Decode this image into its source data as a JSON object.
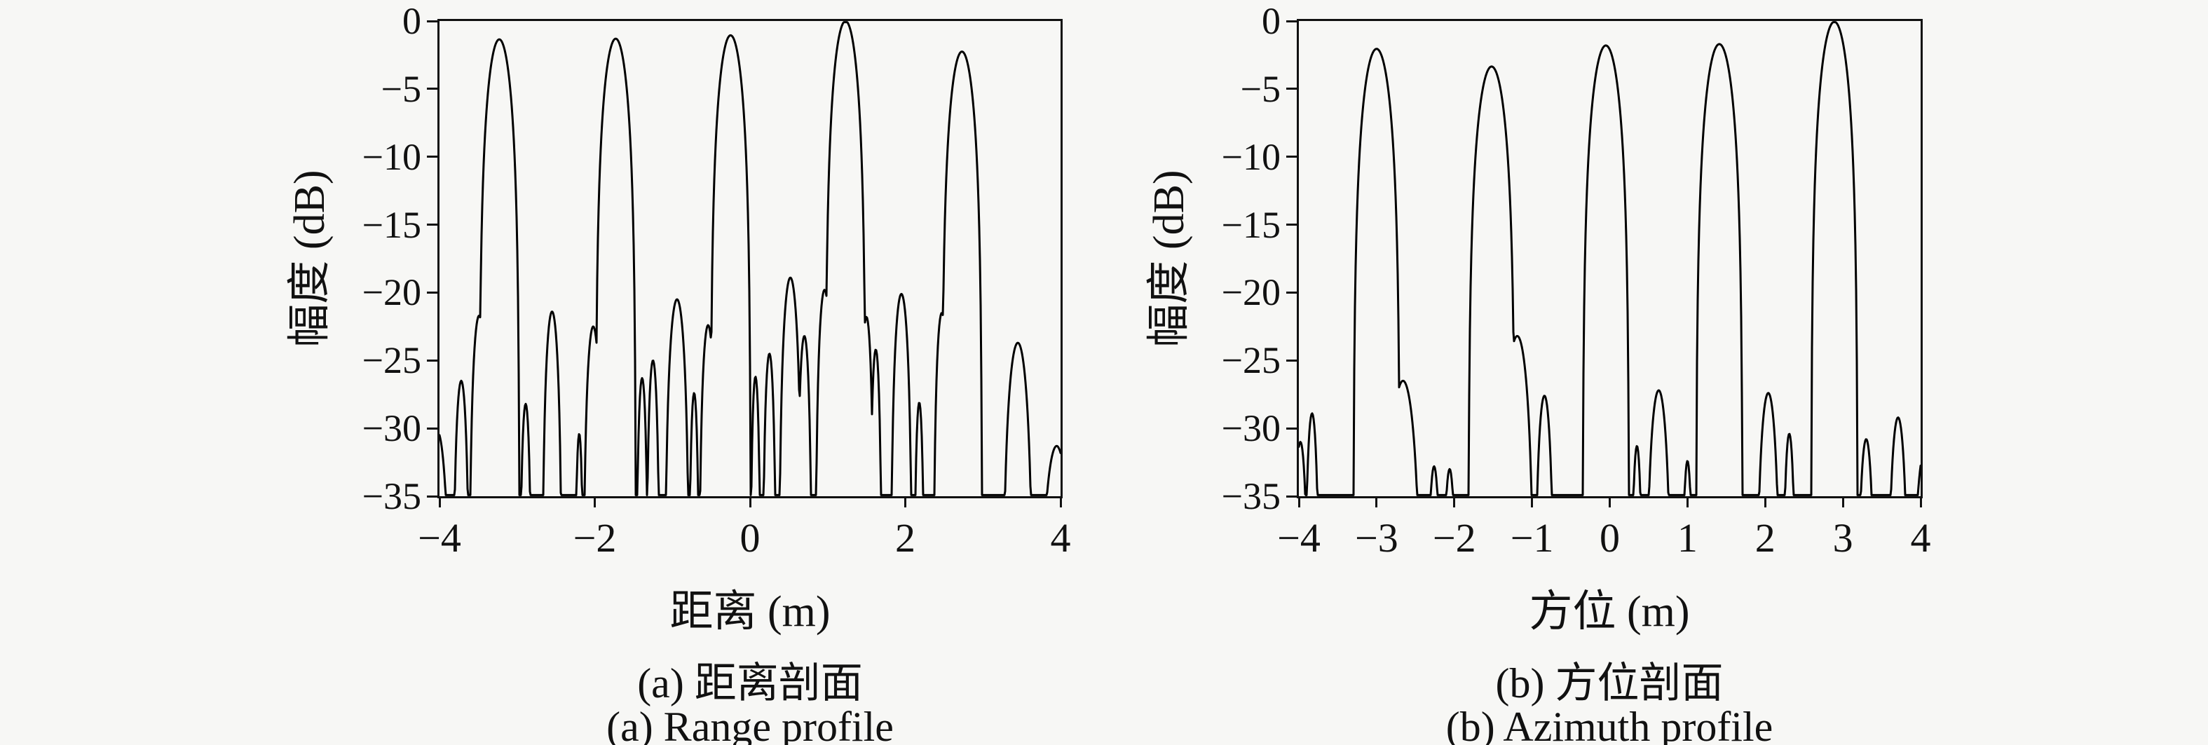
{
  "colors": {
    "background": "#f7f7f5",
    "ink": "#111111",
    "curve": "#000000"
  },
  "figure_ylabel": "幅度 (dB)",
  "chart_data": [
    {
      "type": "line",
      "id": "range-profile",
      "caption_zh": "(a) 距离剖面",
      "caption_en": "(a) Range profile",
      "xlabel": "距离 (m)",
      "ylabel": "幅度 (dB)",
      "xlim": [
        -4,
        4
      ],
      "ylim": [
        -35,
        0
      ],
      "grid": false,
      "legend": "none",
      "x_ticks": [
        {
          "v": -4,
          "label": "−4"
        },
        {
          "v": -2,
          "label": "−2"
        },
        {
          "v": 0,
          "label": "0"
        },
        {
          "v": 2,
          "label": "2"
        },
        {
          "v": 4,
          "label": "4"
        }
      ],
      "y_ticks": [
        {
          "v": 0,
          "label": "0"
        },
        {
          "v": -5,
          "label": "−5"
        },
        {
          "v": -10,
          "label": "−10"
        },
        {
          "v": -15,
          "label": "−15"
        },
        {
          "v": -20,
          "label": "−20"
        },
        {
          "v": -25,
          "label": "−25"
        },
        {
          "v": -30,
          "label": "−30"
        },
        {
          "v": -35,
          "label": "−35"
        }
      ],
      "main_peaks": [
        {
          "x": -3.23,
          "db": -1.35
        },
        {
          "x": -1.73,
          "db": -1.3
        },
        {
          "x": -0.25,
          "db": -1.05
        },
        {
          "x": 1.23,
          "db": 0.0
        },
        {
          "x": 2.73,
          "db": -2.25
        }
      ],
      "lobes": [
        [
          -4.03,
          -30.2,
          0.18
        ],
        [
          -3.72,
          -26.5,
          0.11
        ],
        [
          -3.49,
          -21.7,
          0.13
        ],
        [
          -3.23,
          -1.35,
          0.26
        ],
        [
          -2.89,
          -28.2,
          0.08
        ],
        [
          -2.55,
          -21.4,
          0.13
        ],
        [
          -2.2,
          -30.4,
          0.06
        ],
        [
          -2.02,
          -22.5,
          0.13
        ],
        [
          -1.73,
          -1.3,
          0.26
        ],
        [
          -1.39,
          -26.3,
          0.08
        ],
        [
          -1.25,
          -25.0,
          0.09
        ],
        [
          -0.94,
          -20.5,
          0.16
        ],
        [
          -0.72,
          -27.4,
          0.07
        ],
        [
          -0.54,
          -22.4,
          0.12
        ],
        [
          -0.25,
          -1.05,
          0.26
        ],
        [
          0.07,
          -26.2,
          0.07
        ],
        [
          0.25,
          -24.5,
          0.09
        ],
        [
          0.52,
          -18.9,
          0.15
        ],
        [
          0.7,
          -23.2,
          0.1
        ],
        [
          0.96,
          -19.8,
          0.12
        ],
        [
          1.23,
          0.0,
          0.26
        ],
        [
          1.5,
          -21.8,
          0.1
        ],
        [
          1.62,
          -24.2,
          0.08
        ],
        [
          1.95,
          -20.1,
          0.14
        ],
        [
          2.18,
          -28.1,
          0.07
        ],
        [
          2.47,
          -21.5,
          0.11
        ],
        [
          2.73,
          -2.25,
          0.26
        ],
        [
          3.45,
          -23.7,
          0.2
        ],
        [
          3.95,
          -31.3,
          0.23
        ]
      ]
    },
    {
      "type": "line",
      "id": "azimuth-profile",
      "caption_zh": "(b) 方位剖面",
      "caption_en": "(b) Azimuth profile",
      "xlabel": "方位 (m)",
      "ylabel": "幅度 (dB)",
      "xlim": [
        -4,
        4
      ],
      "ylim": [
        -35,
        0
      ],
      "grid": false,
      "legend": "none",
      "x_ticks": [
        {
          "v": -4,
          "label": "−4"
        },
        {
          "v": -3,
          "label": "−3"
        },
        {
          "v": -2,
          "label": "−2"
        },
        {
          "v": -1,
          "label": "−1"
        },
        {
          "v": 0,
          "label": "0"
        },
        {
          "v": 1,
          "label": "1"
        },
        {
          "v": 2,
          "label": "2"
        },
        {
          "v": 3,
          "label": "3"
        },
        {
          "v": 4,
          "label": "4"
        }
      ],
      "y_ticks": [
        {
          "v": 0,
          "label": "0"
        },
        {
          "v": -5,
          "label": "−5"
        },
        {
          "v": -10,
          "label": "−10"
        },
        {
          "v": -15,
          "label": "−15"
        },
        {
          "v": -20,
          "label": "−20"
        },
        {
          "v": -25,
          "label": "−25"
        },
        {
          "v": -30,
          "label": "−30"
        },
        {
          "v": -35,
          "label": "−35"
        }
      ],
      "main_peaks": [
        {
          "x": -3.0,
          "db": -2.05
        },
        {
          "x": -1.52,
          "db": -3.35
        },
        {
          "x": -0.05,
          "db": -1.8
        },
        {
          "x": 1.41,
          "db": -1.7
        },
        {
          "x": 2.89,
          "db": -0.05
        }
      ],
      "lobes": [
        [
          -3.98,
          -31.0,
          0.11
        ],
        [
          -3.83,
          -28.9,
          0.1
        ],
        [
          -3.0,
          -2.05,
          0.3
        ],
        [
          -2.66,
          -26.5,
          0.24
        ],
        [
          -2.26,
          -32.8,
          0.1
        ],
        [
          -2.06,
          -33.0,
          0.1
        ],
        [
          -1.52,
          -3.35,
          0.3
        ],
        [
          -1.19,
          -23.2,
          0.22
        ],
        [
          -0.84,
          -27.6,
          0.13
        ],
        [
          -0.05,
          -1.8,
          0.3
        ],
        [
          0.35,
          -31.3,
          0.08
        ],
        [
          0.63,
          -27.2,
          0.17
        ],
        [
          1.0,
          -32.4,
          0.08
        ],
        [
          1.41,
          -1.7,
          0.3
        ],
        [
          2.04,
          -27.4,
          0.16
        ],
        [
          2.31,
          -30.4,
          0.09
        ],
        [
          2.89,
          -0.05,
          0.3
        ],
        [
          3.3,
          -30.8,
          0.12
        ],
        [
          3.71,
          -29.2,
          0.14
        ],
        [
          4.06,
          -31.5,
          0.18
        ]
      ]
    }
  ]
}
